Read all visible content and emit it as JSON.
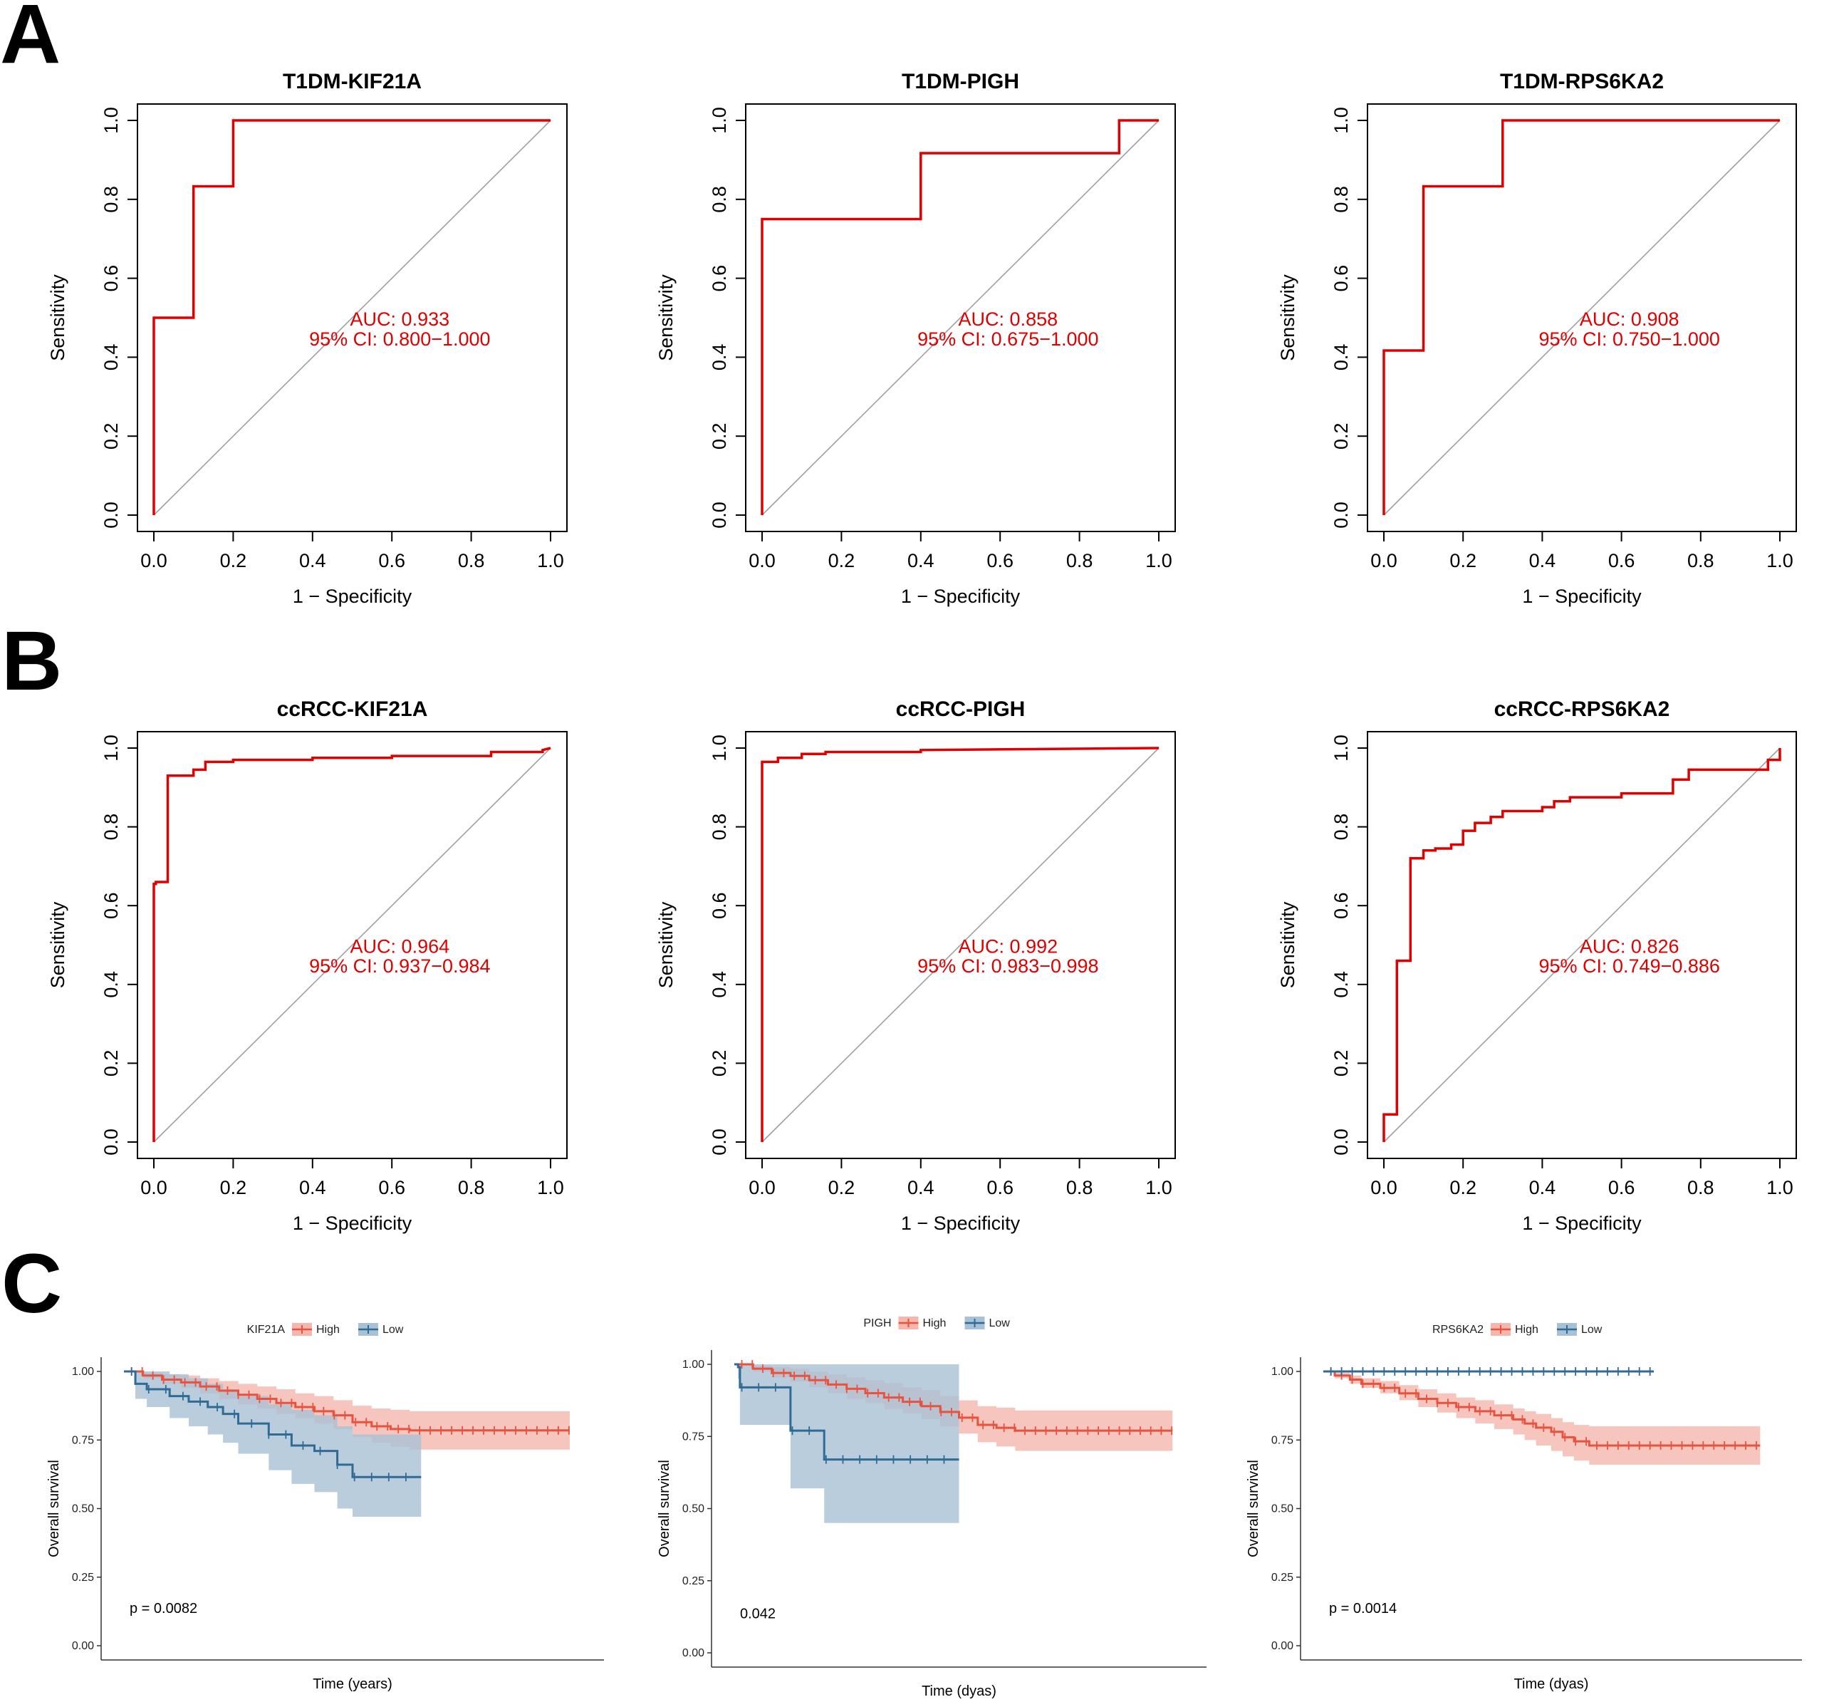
{
  "panels": {
    "A": "A",
    "B": "B",
    "C": "C"
  },
  "colors": {
    "roc": "#e00000",
    "diag": "#a0a0a0",
    "high": "#e8533f",
    "high_band": "#f4b6ad",
    "low": "#2f6b95",
    "low_band": "#a9c1d4"
  },
  "chart_data": [
    {
      "type": "line",
      "panel": "A",
      "title": "T1DM-KIF21A",
      "xlabel": "1 − Specificity",
      "ylabel": "Sensitivity",
      "xlim": [
        0,
        1
      ],
      "ylim": [
        0,
        1
      ],
      "ticks": [
        "0.0",
        "0.2",
        "0.4",
        "0.6",
        "0.8",
        "1.0"
      ],
      "auc": "AUC: 0.933",
      "ci": "95% CI: 0.800−1.000",
      "x": [
        0,
        0,
        0.1,
        0.1,
        0.2,
        0.2,
        1.0
      ],
      "y": [
        0,
        0.5,
        0.5,
        0.833,
        0.833,
        1.0,
        1.0
      ]
    },
    {
      "type": "line",
      "panel": "A",
      "title": "T1DM-PIGH",
      "xlabel": "1 − Specificity",
      "ylabel": "Sensitivity",
      "xlim": [
        0,
        1
      ],
      "ylim": [
        0,
        1
      ],
      "ticks": [
        "0.0",
        "0.2",
        "0.4",
        "0.6",
        "0.8",
        "1.0"
      ],
      "auc": "AUC: 0.858",
      "ci": "95% CI: 0.675−1.000",
      "x": [
        0,
        0,
        0.4,
        0.4,
        0.9,
        0.9,
        1.0
      ],
      "y": [
        0,
        0.75,
        0.75,
        0.917,
        0.917,
        1.0,
        1.0
      ]
    },
    {
      "type": "line",
      "panel": "A",
      "title": "T1DM-RPS6KA2",
      "xlabel": "1 − Specificity",
      "ylabel": "Sensitivity",
      "xlim": [
        0,
        1
      ],
      "ylim": [
        0,
        1
      ],
      "ticks": [
        "0.0",
        "0.2",
        "0.4",
        "0.6",
        "0.8",
        "1.0"
      ],
      "auc": "AUC: 0.908",
      "ci": "95% CI: 0.750−1.000",
      "x": [
        0,
        0,
        0.1,
        0.1,
        0.3,
        0.3,
        1.0
      ],
      "y": [
        0,
        0.417,
        0.417,
        0.833,
        0.833,
        1.0,
        1.0
      ]
    },
    {
      "type": "line",
      "panel": "B",
      "title": "ccRCC-KIF21A",
      "xlabel": "1 − Specificity",
      "ylabel": "Sensitivity",
      "xlim": [
        0,
        1
      ],
      "ylim": [
        0,
        1
      ],
      "ticks": [
        "0.0",
        "0.2",
        "0.4",
        "0.6",
        "0.8",
        "1.0"
      ],
      "auc": "AUC: 0.964",
      "ci": "95% CI: 0.937−0.984",
      "x": [
        0,
        0,
        0.005,
        0.005,
        0.035,
        0.035,
        0.1,
        0.1,
        0.13,
        0.13,
        0.2,
        0.2,
        0.4,
        0.4,
        0.6,
        0.6,
        0.85,
        0.85,
        0.98,
        0.98,
        1.0
      ],
      "y": [
        0,
        0.655,
        0.655,
        0.66,
        0.66,
        0.93,
        0.93,
        0.945,
        0.945,
        0.965,
        0.965,
        0.97,
        0.97,
        0.975,
        0.975,
        0.98,
        0.98,
        0.99,
        0.99,
        0.995,
        1.0
      ]
    },
    {
      "type": "line",
      "panel": "B",
      "title": "ccRCC-PIGH",
      "xlabel": "1 − Specificity",
      "ylabel": "Sensitivity",
      "xlim": [
        0,
        1
      ],
      "ylim": [
        0,
        1
      ],
      "ticks": [
        "0.0",
        "0.2",
        "0.4",
        "0.6",
        "0.8",
        "1.0"
      ],
      "auc": "AUC: 0.992",
      "ci": "95% CI: 0.983−0.998",
      "x": [
        0,
        0,
        0.04,
        0.04,
        0.1,
        0.1,
        0.16,
        0.16,
        0.4,
        0.4,
        1.0
      ],
      "y": [
        0,
        0.965,
        0.965,
        0.975,
        0.975,
        0.985,
        0.985,
        0.99,
        0.99,
        0.995,
        1.0
      ]
    },
    {
      "type": "line",
      "panel": "B",
      "title": "ccRCC-RPS6KA2",
      "xlabel": "1 − Specificity",
      "ylabel": "Sensitivity",
      "xlim": [
        0,
        1
      ],
      "ylim": [
        0,
        1
      ],
      "ticks": [
        "0.0",
        "0.2",
        "0.4",
        "0.6",
        "0.8",
        "1.0"
      ],
      "auc": "AUC: 0.826",
      "ci": "95% CI: 0.749−0.886",
      "x": [
        0,
        0,
        0.033,
        0.033,
        0.067,
        0.067,
        0.067,
        0.1,
        0.1,
        0.13,
        0.13,
        0.17,
        0.17,
        0.2,
        0.2,
        0.23,
        0.23,
        0.27,
        0.27,
        0.3,
        0.3,
        0.4,
        0.4,
        0.43,
        0.43,
        0.47,
        0.47,
        0.6,
        0.6,
        0.73,
        0.73,
        0.77,
        0.77,
        0.97,
        0.97,
        1.0,
        1.0
      ],
      "y": [
        0,
        0.07,
        0.07,
        0.46,
        0.46,
        0.72,
        0.72,
        0.72,
        0.74,
        0.74,
        0.745,
        0.745,
        0.755,
        0.755,
        0.79,
        0.79,
        0.81,
        0.81,
        0.825,
        0.825,
        0.84,
        0.84,
        0.85,
        0.85,
        0.865,
        0.865,
        0.875,
        0.875,
        0.885,
        0.885,
        0.92,
        0.92,
        0.945,
        0.945,
        0.97,
        0.97,
        1.0
      ]
    },
    {
      "type": "line",
      "panel": "C",
      "legend_title": "KIF21A",
      "legend": [
        "High",
        "Low"
      ],
      "xlabel": "Time (years)",
      "ylabel": "Overall survival",
      "p_text": "p = 0.0082",
      "xlim": [
        0,
        12
      ],
      "ylim": [
        0,
        1
      ],
      "yticks": [
        "0.00",
        "0.25",
        "0.50",
        "0.75",
        "1.00"
      ],
      "series": [
        {
          "name": "High",
          "x": [
            0,
            0.5,
            1,
            1.5,
            2,
            2.5,
            3,
            3.5,
            4,
            4.5,
            5,
            5.5,
            6,
            6.5,
            7,
            7.5,
            8.5,
            11.7
          ],
          "y": [
            1.0,
            0.985,
            0.97,
            0.96,
            0.945,
            0.93,
            0.915,
            0.9,
            0.885,
            0.87,
            0.855,
            0.84,
            0.815,
            0.8,
            0.79,
            0.785,
            0.785,
            0.785
          ],
          "lower": [
            1.0,
            0.975,
            0.955,
            0.94,
            0.92,
            0.9,
            0.88,
            0.865,
            0.845,
            0.83,
            0.81,
            0.79,
            0.76,
            0.74,
            0.725,
            0.715,
            0.715,
            0.715
          ],
          "upper": [
            1.0,
            0.995,
            0.99,
            0.985,
            0.975,
            0.965,
            0.955,
            0.945,
            0.935,
            0.92,
            0.91,
            0.895,
            0.875,
            0.865,
            0.86,
            0.855,
            0.855,
            0.855
          ]
        },
        {
          "name": "Low",
          "x": [
            0,
            0.3,
            0.6,
            1.2,
            1.7,
            2.2,
            2.6,
            3.0,
            3.8,
            4.4,
            5.0,
            5.6,
            6.0,
            7.8
          ],
          "y": [
            1.0,
            0.955,
            0.935,
            0.91,
            0.89,
            0.87,
            0.845,
            0.81,
            0.77,
            0.73,
            0.71,
            0.66,
            0.615,
            0.615
          ],
          "lower": [
            1.0,
            0.9,
            0.87,
            0.83,
            0.8,
            0.77,
            0.74,
            0.7,
            0.64,
            0.59,
            0.56,
            0.5,
            0.47,
            0.47
          ],
          "upper": [
            1.0,
            1.0,
            1.0,
            0.99,
            0.975,
            0.955,
            0.935,
            0.91,
            0.88,
            0.86,
            0.84,
            0.8,
            0.77,
            0.77
          ]
        }
      ]
    },
    {
      "type": "line",
      "panel": "C",
      "legend_title": "PIGH",
      "legend": [
        "High",
        "Low"
      ],
      "xlabel": "Time (dyas)",
      "ylabel": "Overall survival",
      "p_text": "0.042",
      "xlim": [
        0,
        12
      ],
      "ylim": [
        0,
        1
      ],
      "yticks": [
        "0.00",
        "0.25",
        "0.50",
        "0.75",
        "1.00"
      ],
      "series": [
        {
          "name": "High",
          "x": [
            0,
            0.5,
            1,
            1.5,
            2,
            2.5,
            3,
            3.5,
            4,
            4.5,
            5,
            5.5,
            6,
            6.5,
            7,
            7.5,
            8.5,
            11.7
          ],
          "y": [
            1.0,
            0.985,
            0.97,
            0.96,
            0.945,
            0.93,
            0.915,
            0.9,
            0.885,
            0.87,
            0.855,
            0.835,
            0.815,
            0.79,
            0.78,
            0.77,
            0.77,
            0.77
          ],
          "lower": [
            1.0,
            0.975,
            0.955,
            0.94,
            0.92,
            0.9,
            0.88,
            0.865,
            0.845,
            0.83,
            0.81,
            0.785,
            0.76,
            0.73,
            0.715,
            0.7,
            0.7,
            0.7
          ],
          "upper": [
            1.0,
            0.995,
            0.99,
            0.985,
            0.975,
            0.965,
            0.955,
            0.945,
            0.935,
            0.92,
            0.91,
            0.89,
            0.875,
            0.855,
            0.85,
            0.84,
            0.84,
            0.84
          ]
        },
        {
          "name": "Low",
          "x": [
            0,
            0.1,
            0.15,
            1.2,
            1.5,
            2.0,
            2.4,
            6.0
          ],
          "y": [
            1.0,
            0.99,
            0.92,
            0.92,
            0.77,
            0.77,
            0.67,
            0.67
          ],
          "lower": [
            1.0,
            0.95,
            0.79,
            0.79,
            0.57,
            0.57,
            0.45,
            0.45
          ],
          "upper": [
            1.0,
            1.0,
            1.0,
            1.0,
            1.0,
            1.0,
            1.0,
            1.0
          ]
        }
      ]
    },
    {
      "type": "line",
      "panel": "C",
      "legend_title": "RPS6KA2",
      "legend": [
        "High",
        "Low"
      ],
      "xlabel": "Time (dyas)",
      "ylabel": "Overall survival",
      "p_text": "p = 0.0014",
      "xlim": [
        0,
        12
      ],
      "ylim": [
        0,
        1
      ],
      "yticks": [
        "0.00",
        "0.25",
        "0.50",
        "0.75",
        "1.00"
      ],
      "series": [
        {
          "name": "High",
          "x": [
            0,
            0.3,
            0.7,
            1,
            1.5,
            2,
            2.5,
            3,
            3.5,
            4,
            4.5,
            5,
            5.3,
            5.6,
            6,
            6.3,
            6.6,
            7,
            11.5
          ],
          "y": [
            1.0,
            0.985,
            0.97,
            0.955,
            0.94,
            0.92,
            0.9,
            0.885,
            0.87,
            0.855,
            0.84,
            0.825,
            0.81,
            0.795,
            0.78,
            0.76,
            0.745,
            0.73,
            0.73
          ],
          "lower": [
            1.0,
            0.975,
            0.955,
            0.94,
            0.92,
            0.895,
            0.87,
            0.85,
            0.83,
            0.81,
            0.79,
            0.77,
            0.75,
            0.73,
            0.71,
            0.69,
            0.675,
            0.66,
            0.66
          ],
          "upper": [
            1.0,
            0.995,
            0.985,
            0.975,
            0.965,
            0.95,
            0.935,
            0.92,
            0.905,
            0.895,
            0.88,
            0.865,
            0.855,
            0.845,
            0.83,
            0.815,
            0.805,
            0.8,
            0.8
          ]
        },
        {
          "name": "Low",
          "x": [
            0,
            8.7
          ],
          "y": [
            1.0,
            1.0
          ],
          "lower": [
            1.0,
            1.0
          ],
          "upper": [
            1.0,
            1.0
          ]
        }
      ]
    }
  ]
}
